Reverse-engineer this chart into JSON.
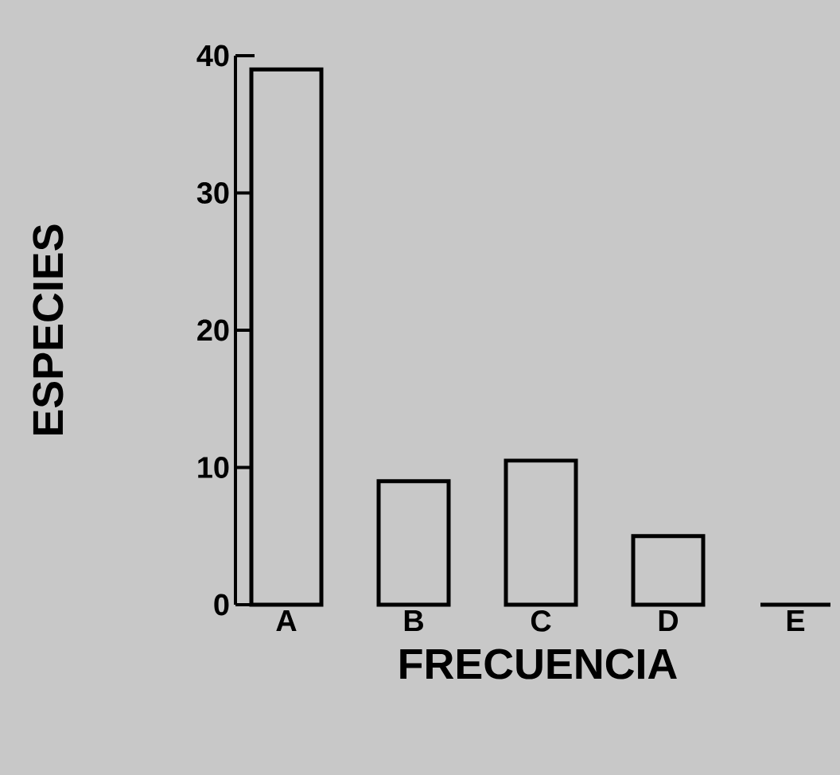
{
  "chart_data": {
    "type": "bar",
    "xlabel": "FRECUENCIA",
    "ylabel": "ESPECIES",
    "categories": [
      "A",
      "B",
      "C",
      "D",
      "E"
    ],
    "values": [
      39,
      9,
      10.5,
      5,
      0
    ],
    "color": "#000000",
    "ylim": [
      0,
      40
    ],
    "yticks": [
      0,
      10,
      20,
      30,
      40
    ],
    "grid": false
  }
}
